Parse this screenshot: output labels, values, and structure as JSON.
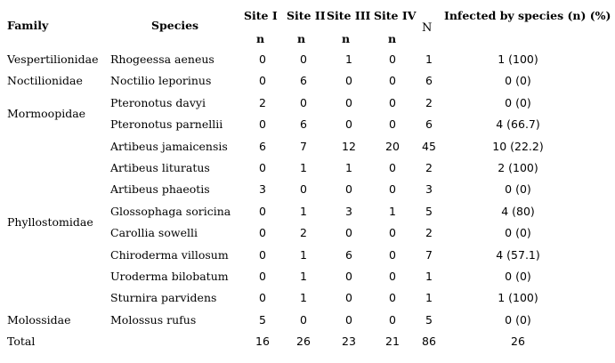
{
  "header": {
    "family": "Family",
    "species": "Species",
    "site1": "Site I",
    "site2": "Site II",
    "site3": "Site III",
    "site4": "Site IV",
    "n_sub": "n",
    "N": "N",
    "infected": "Infected by species (n) (%)"
  },
  "families": [
    {
      "label": "Vespertilionidae",
      "row": 0
    },
    {
      "label": "Noctilionidae",
      "row": 1
    },
    {
      "label": "Mormoopidae",
      "row": 2.5
    },
    {
      "label": "Phyllostomidae",
      "row": 7.5
    },
    {
      "label": "Molossidae",
      "row": 12
    }
  ],
  "rows": [
    {
      "species": "Rhogeessa aeneus",
      "s1": "0",
      "s2": "0",
      "s3": "1",
      "s4": "0",
      "N": "1",
      "infected": "1 (100)"
    },
    {
      "species": "Noctilio leporinus",
      "s1": "0",
      "s2": "6",
      "s3": "0",
      "s4": "0",
      "N": "6",
      "infected": "0 (0)"
    },
    {
      "species": "Pteronotus davyi",
      "s1": "2",
      "s2": "0",
      "s3": "0",
      "s4": "0",
      "N": "2",
      "infected": "0 (0)"
    },
    {
      "species": "Pteronotus parnellii",
      "s1": "0",
      "s2": "6",
      "s3": "0",
      "s4": "0",
      "N": "6",
      "infected": "4 (66.7)"
    },
    {
      "species": "Artibeus jamaicensis",
      "s1": "6",
      "s2": "7",
      "s3": "12",
      "s4": "20",
      "N": "45",
      "infected": "10 (22.2)"
    },
    {
      "species": "Artibeus lituratus",
      "s1": "0",
      "s2": "1",
      "s3": "1",
      "s4": "0",
      "N": "2",
      "infected": "2 (100)"
    },
    {
      "species": "Artibeus phaeotis",
      "s1": "3",
      "s2": "0",
      "s3": "0",
      "s4": "0",
      "N": "3",
      "infected": "0 (0)"
    },
    {
      "species": "Glossophaga soricina",
      "s1": "0",
      "s2": "1",
      "s3": "3",
      "s4": "1",
      "N": "5",
      "infected": "4 (80)"
    },
    {
      "species": "Carollia sowelli",
      "s1": "0",
      "s2": "2",
      "s3": "0",
      "s4": "0",
      "N": "2",
      "infected": "0 (0)"
    },
    {
      "species": "Chiroderma villosum",
      "s1": "0",
      "s2": "1",
      "s3": "6",
      "s4": "0",
      "N": "7",
      "infected": "4 (57.1)"
    },
    {
      "species": "Uroderma bilobatum",
      "s1": "0",
      "s2": "1",
      "s3": "0",
      "s4": "0",
      "N": "1",
      "infected": "0 (0)"
    },
    {
      "species": "Sturnira parvidens",
      "s1": "0",
      "s2": "1",
      "s3": "0",
      "s4": "0",
      "N": "1",
      "infected": "1 (100)"
    },
    {
      "species": "Molossus rufus",
      "s1": "5",
      "s2": "0",
      "s3": "0",
      "s4": "0",
      "N": "5",
      "infected": "0 (0)"
    }
  ],
  "total": {
    "label": "Total",
    "s1": "16",
    "s2": "26",
    "s3": "23",
    "s4": "21",
    "N": "86",
    "infected": "26"
  }
}
